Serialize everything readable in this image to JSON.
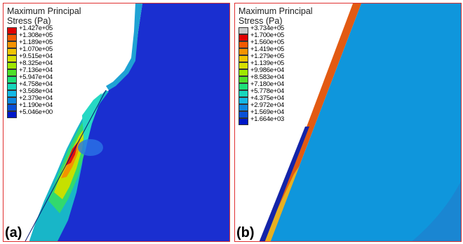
{
  "panels": [
    {
      "tag": "(a)",
      "legend_title": "Maximum Principal",
      "legend_title2": "Stress (Pa)",
      "legend": [
        {
          "label": "+1.427e+05",
          "color": "#e00000"
        },
        {
          "label": "+1.308e+05",
          "color": "#f25a00"
        },
        {
          "label": "+1.189e+05",
          "color": "#f59300"
        },
        {
          "label": "+1.070e+05",
          "color": "#f0c400"
        },
        {
          "label": "+9.515e+04",
          "color": "#d6e000"
        },
        {
          "label": "+8.325e+04",
          "color": "#9ee800"
        },
        {
          "label": "+7.136e+04",
          "color": "#4fe02a"
        },
        {
          "label": "+5.947e+04",
          "color": "#1ee07a"
        },
        {
          "label": "+4.758e+04",
          "color": "#18d6bc"
        },
        {
          "label": "+3.568e+04",
          "color": "#14b8e6"
        },
        {
          "label": "+2.379e+04",
          "color": "#0f86e0"
        },
        {
          "label": "+1.190e+04",
          "color": "#0a50d6"
        },
        {
          "label": "+5.046e+00",
          "color": "#0018c8"
        }
      ]
    },
    {
      "tag": "(b)",
      "legend_title": "Maximum Principal",
      "legend_title2": "Stress (Pa)",
      "legend": [
        {
          "label": "+3.734e+05",
          "color": "#c8c8c8"
        },
        {
          "label": "+1.700e+05",
          "color": "#e00000"
        },
        {
          "label": "+1.560e+05",
          "color": "#f25a00"
        },
        {
          "label": "+1.419e+05",
          "color": "#f59300"
        },
        {
          "label": "+1.279e+05",
          "color": "#f0c400"
        },
        {
          "label": "+1.139e+05",
          "color": "#d6e000"
        },
        {
          "label": "+9.986e+04",
          "color": "#9ee800"
        },
        {
          "label": "+8.583e+04",
          "color": "#4fe02a"
        },
        {
          "label": "+7.180e+04",
          "color": "#1ee07a"
        },
        {
          "label": "+5.778e+04",
          "color": "#18d6bc"
        },
        {
          "label": "+4.375e+04",
          "color": "#14b8e6"
        },
        {
          "label": "+2.972e+04",
          "color": "#0f86e0"
        },
        {
          "label": "+1.569e+04",
          "color": "#0a50d6"
        },
        {
          "label": "+1.664e+03",
          "color": "#0018c8"
        }
      ]
    }
  ]
}
